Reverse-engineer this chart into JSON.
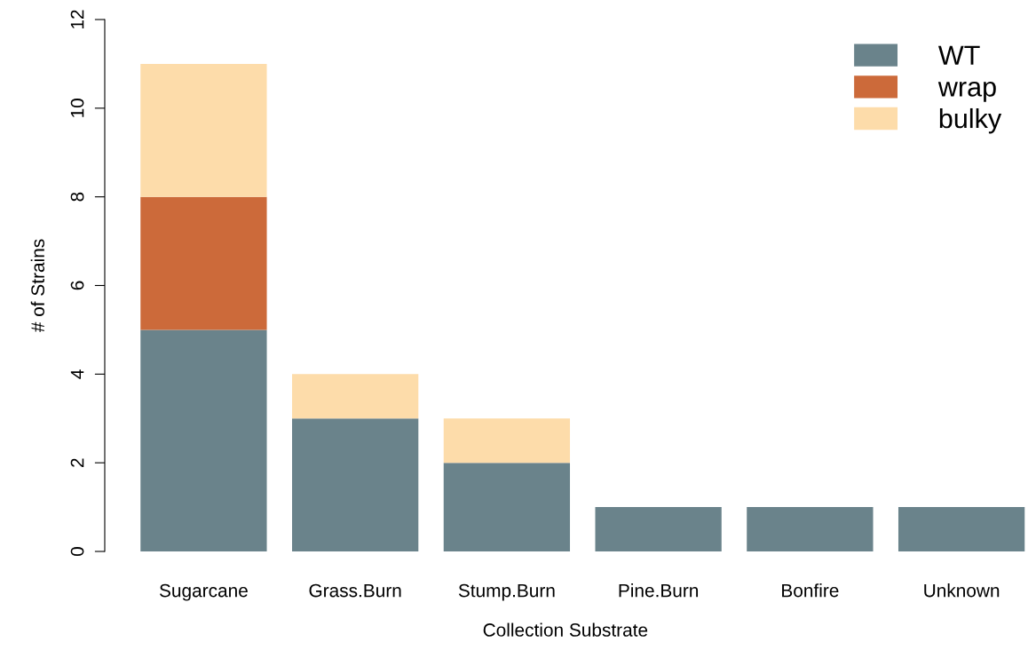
{
  "chart_data": {
    "type": "bar",
    "stacked": true,
    "xlabel": "Collection Substrate",
    "ylabel": "# of Strains",
    "categories": [
      "Sugarcane",
      "Grass.Burn",
      "Stump.Burn",
      "Pine.Burn",
      "Bonfire",
      "Unknown"
    ],
    "series": [
      {
        "name": "WT",
        "color": "#6a838b",
        "values": [
          5,
          3,
          2,
          1,
          1,
          1
        ]
      },
      {
        "name": "wrap",
        "color": "#cc6a3a",
        "values": [
          3,
          0,
          0,
          0,
          0,
          0
        ]
      },
      {
        "name": "bulky",
        "color": "#fddcaa",
        "values": [
          3,
          1,
          1,
          0,
          0,
          0
        ]
      }
    ],
    "ylim": [
      0,
      12
    ],
    "yticks": [
      0,
      2,
      4,
      6,
      8,
      10,
      12
    ],
    "grid": false,
    "legend": "top right"
  }
}
